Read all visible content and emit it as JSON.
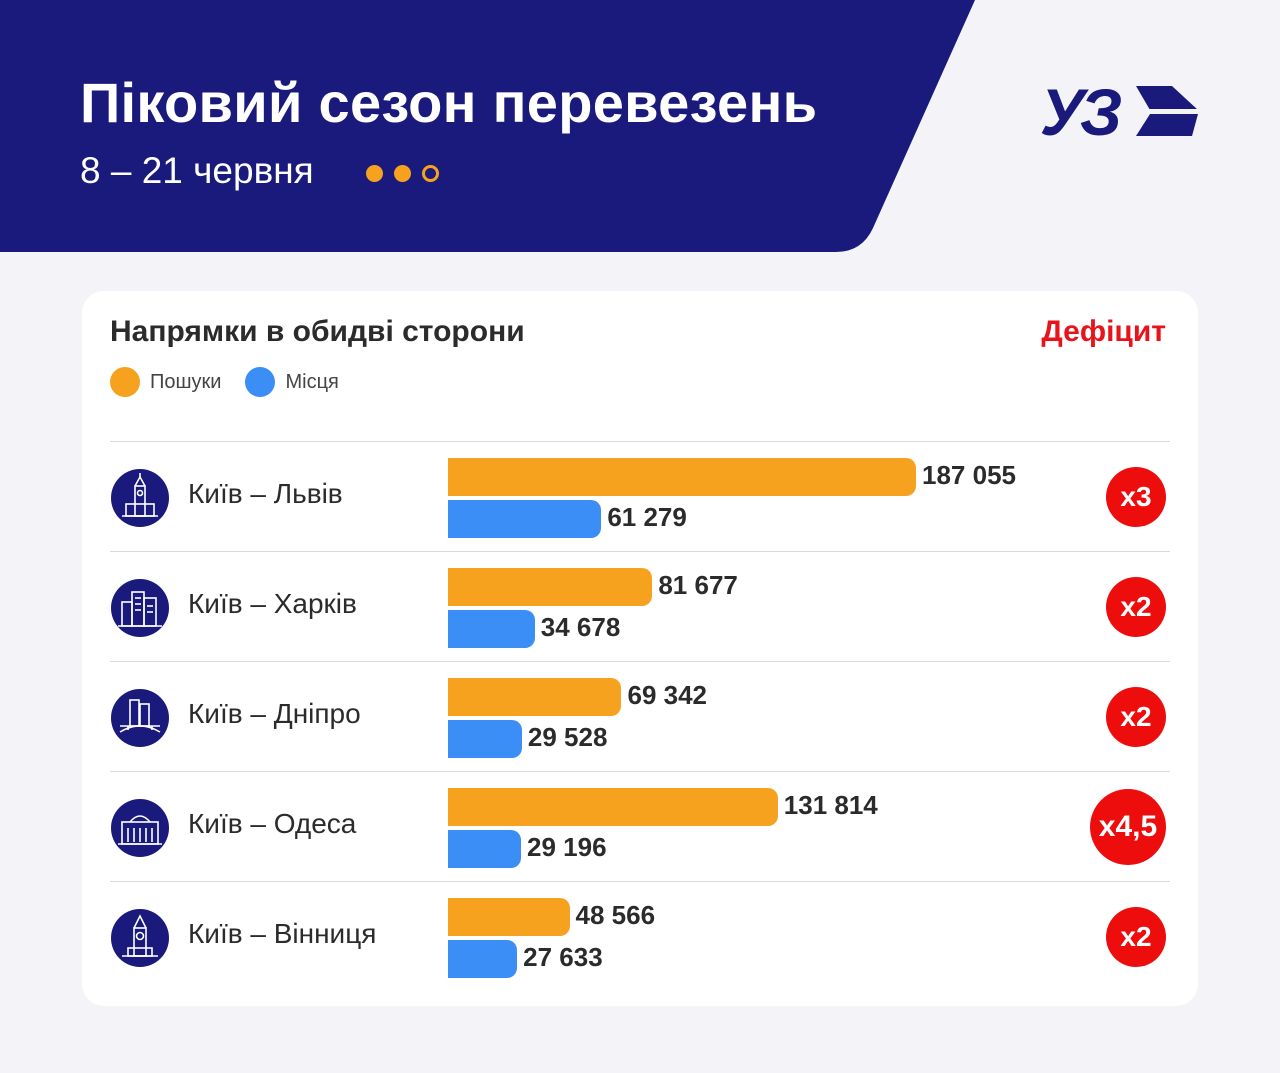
{
  "header": {
    "title": "Піковий сезон перевезень",
    "subtitle": "8 – 21 червня",
    "logo": "УЗ",
    "colors": {
      "background": "#191a7c",
      "accent": "#f7a21f"
    }
  },
  "chart_data": {
    "type": "bar",
    "orientation": "horizontal",
    "title": "Напрямки в обидві сторони",
    "deficit_header": "Дефіцит",
    "legend": [
      {
        "name": "Пошуки",
        "color": "#f7a21f"
      },
      {
        "name": "Місця",
        "color": "#3a8ef6"
      }
    ],
    "categories": [
      "Київ – Львів",
      "Київ – Харків",
      "Київ – Дніпро",
      "Київ – Одеса",
      "Київ – Вінниця"
    ],
    "categories_icons": [
      "lviv-town-hall-icon",
      "kharkiv-buildings-icon",
      "dnipro-bridge-icon",
      "odesa-theatre-icon",
      "vinnytsia-tower-icon"
    ],
    "series": [
      {
        "name": "Пошуки",
        "values": [
          187055,
          81677,
          69342,
          131814,
          48566
        ],
        "labels": [
          "187 055",
          "81 677",
          "69 342",
          "131 814",
          "48 566"
        ]
      },
      {
        "name": "Місця",
        "values": [
          61279,
          34678,
          29528,
          29196,
          27633
        ],
        "labels": [
          "61 279",
          "34 678",
          "29 528",
          "29 196",
          "27 633"
        ]
      }
    ],
    "deficit": [
      "x3",
      "x2",
      "x2",
      "x4,5",
      "x2"
    ],
    "xlim": [
      0,
      187055
    ],
    "grid": false,
    "legend_position": "top-left"
  }
}
